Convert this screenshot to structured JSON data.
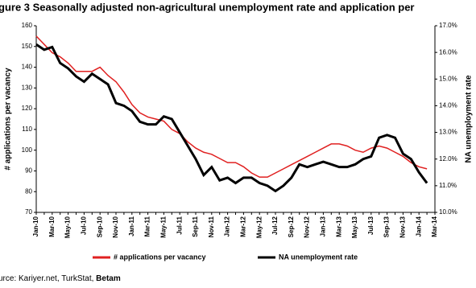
{
  "chart_data": {
    "type": "line",
    "title": "gure 3 Seasonally adjusted non-agricultural unemployment rate and application per",
    "y_label": "# applications per vacancy",
    "y2_label": "NA unemployment rate",
    "source_prefix": "urce: Kariyer.net, TurkStat,",
    "source_bold": "Betam",
    "categories": [
      "Jan-10",
      null,
      "Mar-10",
      null,
      "May-10",
      null,
      "Jul-10",
      null,
      "Sep-10",
      null,
      "Nov-10",
      null,
      "Jan-11",
      null,
      "Mar-11",
      null,
      "May-11",
      null,
      "Jul-11",
      null,
      "Sep-11",
      null,
      "Nov-11",
      null,
      "Jan-12",
      null,
      "Mar-12",
      null,
      "May-12",
      null,
      "Jul-12",
      null,
      "Sep-12",
      null,
      "Nov-12",
      null,
      "Jan-13",
      null,
      "Mar-13",
      null,
      "May-13",
      null,
      "Jul-13",
      null,
      "Sep-13",
      null,
      "Nov-13",
      null,
      "Jan-14",
      null,
      "Mar-14"
    ],
    "series": [
      {
        "name": "# applications per vacancy",
        "color": "#e02020",
        "values": [
          155,
          151,
          147,
          145,
          142,
          138,
          138,
          138,
          140,
          136,
          133,
          128,
          122,
          118,
          116,
          115,
          114,
          110,
          108,
          104,
          101,
          99,
          98,
          96,
          94,
          94,
          92,
          89,
          87,
          87,
          89,
          91,
          93,
          95,
          97,
          99,
          101,
          103,
          103,
          102,
          100,
          99,
          101,
          102,
          101,
          99,
          97,
          94,
          92,
          91,
          null
        ]
      },
      {
        "name": "NA unemployment rate",
        "color": "#000000",
        "axis": "y2",
        "values": [
          16.3,
          16.1,
          16.2,
          15.6,
          15.4,
          15.1,
          14.9,
          15.2,
          15.0,
          14.8,
          14.1,
          14.0,
          13.8,
          13.4,
          13.3,
          13.3,
          13.6,
          13.5,
          13.0,
          12.5,
          12.0,
          11.4,
          11.7,
          11.2,
          11.3,
          11.1,
          11.3,
          11.3,
          11.1,
          11.0,
          10.8,
          11.0,
          11.3,
          11.8,
          11.7,
          11.8,
          11.9,
          11.8,
          11.7,
          11.7,
          11.8,
          12.0,
          12.1,
          12.8,
          12.9,
          12.8,
          12.2,
          12.0,
          11.5,
          11.1,
          null
        ]
      }
    ],
    "ylim": [
      70,
      160
    ],
    "yticks": [
      70,
      80,
      90,
      100,
      110,
      120,
      130,
      140,
      150,
      160
    ],
    "y2lim": [
      10,
      17
    ],
    "y2ticks": [
      {
        "value": 10,
        "label": "10.0%"
      },
      {
        "value": 11,
        "label": "11.0%"
      },
      {
        "value": 12,
        "label": "12.0%"
      },
      {
        "value": 13,
        "label": "13.0%"
      },
      {
        "value": 14,
        "label": "14.0%"
      },
      {
        "value": 15,
        "label": "15.0%"
      },
      {
        "value": 16,
        "label": "16.0%"
      },
      {
        "value": 17,
        "label": "17.0%"
      }
    ],
    "legend": "bottom"
  }
}
